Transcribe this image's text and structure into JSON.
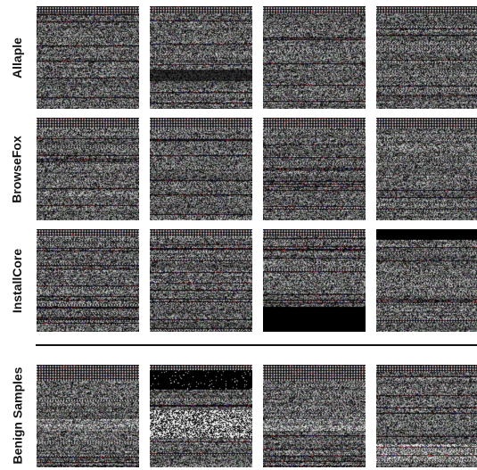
{
  "rows": [
    {
      "label": "Allaple",
      "key": "allaple"
    },
    {
      "label": "BrowseFox",
      "key": "browsefox"
    },
    {
      "label": "InstallCore",
      "key": "installcore"
    },
    {
      "label": "Benign Samples",
      "key": "benign"
    }
  ],
  "palette": {
    "background": "#ffffff",
    "text": "#111111",
    "block": "#000000"
  }
}
